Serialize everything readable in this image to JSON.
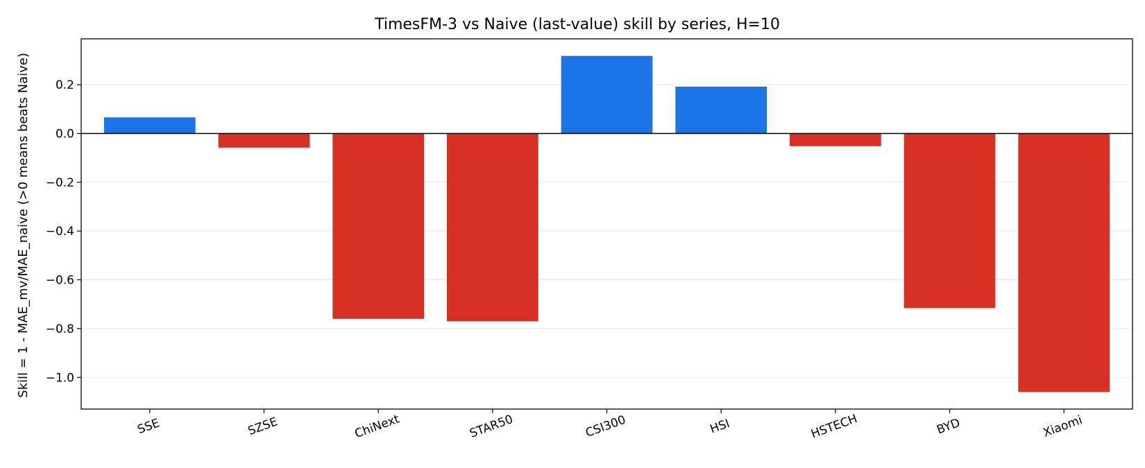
{
  "chart_data": {
    "type": "bar",
    "title": "TimesFM-3 vs Naive (last-value) skill by series, H=10",
    "xlabel": "",
    "ylabel": "Skill = 1 - MAE_mv/MAE_naive  (>0 means beats Naive)",
    "categories": [
      "SSE",
      "SZSE",
      "ChiNext",
      "STAR50",
      "CSI300",
      "HSI",
      "HSTECH",
      "BYD",
      "Xiaomi"
    ],
    "values": [
      0.066,
      -0.058,
      -0.76,
      -0.77,
      0.318,
      0.192,
      -0.052,
      -0.716,
      -1.06
    ],
    "ylim": [
      -1.13,
      0.388
    ],
    "yticks": [
      0.2,
      0.0,
      -0.2,
      -0.4,
      -0.6,
      -0.8,
      -1.0
    ],
    "ytick_labels": [
      "0.2",
      "0.0",
      "−0.2",
      "−0.4",
      "−0.6",
      "−0.8",
      "−1.0"
    ],
    "grid": "horizontal",
    "zero_line": true,
    "colors": {
      "positive": "#1c74e9",
      "negative": "#d93025",
      "grid": "#e6e6e6",
      "axis": "#000000"
    }
  }
}
